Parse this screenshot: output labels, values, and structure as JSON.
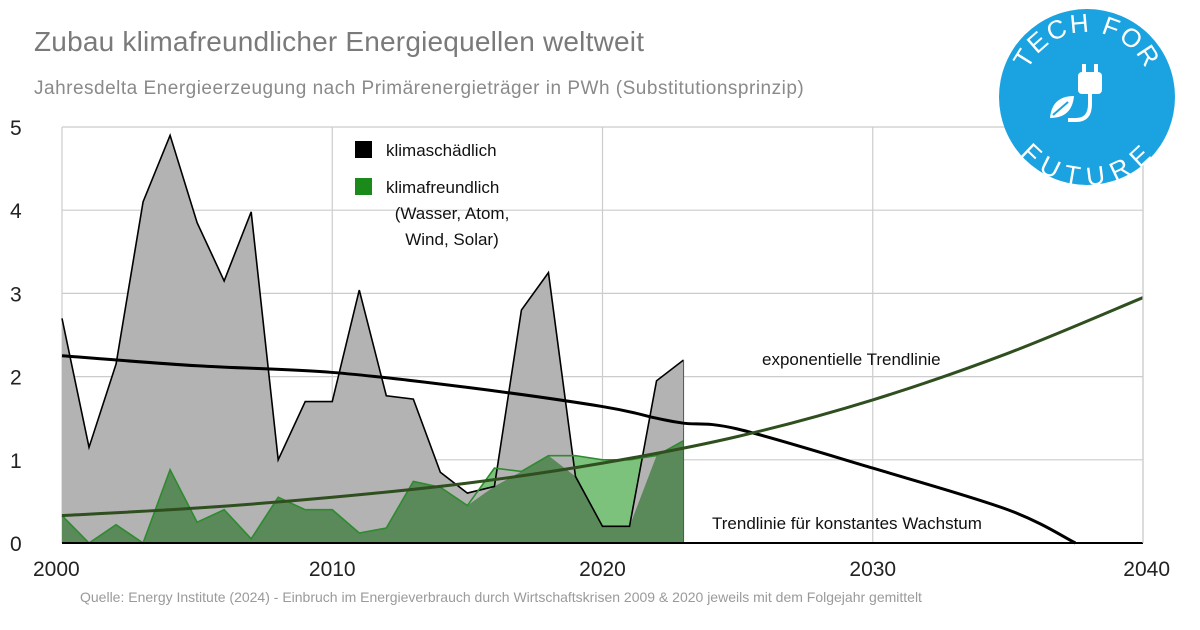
{
  "title": "Zubau klimafreundlicher Energiequellen weltweit",
  "subtitle": "Jahresdelta Energieerzeugung nach Primärenergieträger in PWh (Substitutionsprinzip)",
  "source": "Quelle: Energy Institute (2024) - Einbruch im Energieverbrauch durch Wirtschaftskrisen 2009 & 2020 jeweils mit dem Folgejahr gemittelt",
  "logo": {
    "top_text": "TECH FOR",
    "bottom_text": "FUTURE",
    "color": "#1aa3e0",
    "icon": "plug-leaf-icon"
  },
  "colors": {
    "klimaschaedlich_fill": "#b3b3b3",
    "klimafreundlich_fill": "#5a8a5a",
    "klimafreundlich_fill_light": "#7cc27c",
    "klimafreundlich_line": "#2e8b2e",
    "trend_exp": "#2f4f1f",
    "trend_lin": "#000000",
    "legend_black": "#000000",
    "legend_green": "#1a8a1a",
    "grid": "#cccccc"
  },
  "chart_data": {
    "type": "area",
    "x_ticks": [
      2000,
      2010,
      2020,
      2030,
      2040
    ],
    "y_ticks": [
      0,
      1,
      2,
      3,
      4,
      5
    ],
    "xlim": [
      2000,
      2040
    ],
    "ylim": [
      0,
      5
    ],
    "grid": true,
    "legend": [
      {
        "label": "klimaschädlich",
        "color": "#000000"
      },
      {
        "label_lines": [
          "klimafreundlich",
          "(Wasser, Atom,",
          "Wind, Solar)"
        ],
        "color": "#1a8a1a"
      }
    ],
    "legend_position": "top-center",
    "series": [
      {
        "name": "klimaschädlich",
        "x": [
          2000,
          2001,
          2002,
          2003,
          2004,
          2005,
          2006,
          2007,
          2008,
          2009,
          2010,
          2011,
          2012,
          2013,
          2014,
          2015,
          2016,
          2017,
          2018,
          2019,
          2020,
          2021,
          2022,
          2023
        ],
        "values": [
          2.7,
          1.15,
          2.15,
          4.1,
          4.9,
          3.85,
          3.15,
          3.98,
          1.0,
          1.7,
          1.7,
          3.04,
          1.77,
          1.73,
          0.85,
          0.6,
          0.68,
          2.8,
          3.25,
          0.8,
          0.2,
          0.2,
          1.95,
          2.2
        ]
      },
      {
        "name": "klimafreundlich",
        "x": [
          2000,
          2001,
          2002,
          2003,
          2004,
          2005,
          2006,
          2007,
          2008,
          2009,
          2010,
          2011,
          2012,
          2013,
          2014,
          2015,
          2016,
          2017,
          2018,
          2019,
          2020,
          2021,
          2022,
          2023
        ],
        "values": [
          0.33,
          0.0,
          0.22,
          0.0,
          0.88,
          0.25,
          0.4,
          0.05,
          0.55,
          0.4,
          0.4,
          0.12,
          0.18,
          0.74,
          0.67,
          0.45,
          0.9,
          0.86,
          1.05,
          1.05,
          1.0,
          1.0,
          1.05,
          1.23
        ]
      },
      {
        "name": "Trendlinie für konstantes Wachstum",
        "x": [
          2000,
          2005,
          2010,
          2015,
          2020,
          2022,
          2023,
          2025,
          2030,
          2035,
          2037.5
        ],
        "values": [
          2.25,
          2.13,
          2.05,
          1.87,
          1.64,
          1.5,
          1.44,
          1.37,
          0.9,
          0.4,
          0.0
        ]
      },
      {
        "name": "exponentielle Trendlinie",
        "x": [
          2000,
          2005,
          2010,
          2015,
          2020,
          2025,
          2030,
          2035,
          2040
        ],
        "values": [
          0.33,
          0.42,
          0.55,
          0.72,
          0.96,
          1.28,
          1.72,
          2.28,
          2.95
        ]
      }
    ],
    "annotations": [
      {
        "text": "exponentielle Trendlinie",
        "x": 2031,
        "y": 2.2
      },
      {
        "text": "Trendlinie für konstantes Wachstum",
        "x": 2029,
        "y": 0.22
      }
    ]
  }
}
